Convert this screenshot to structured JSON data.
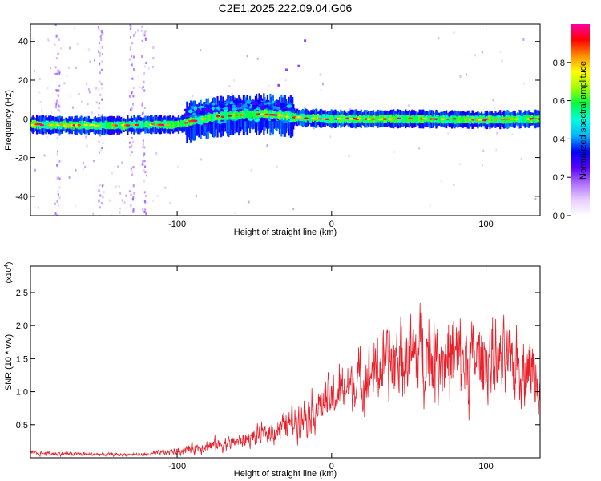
{
  "page_title": "C2E1.2025.222.09.04.G06",
  "chart_data": [
    {
      "type": "heatmap",
      "title": "C2E1.2025.222.09.04.G06",
      "xlabel": "Height of straight line (km)",
      "ylabel": "Frequency (Hz)",
      "xlim": [
        -195,
        135
      ],
      "ylim": [
        -50,
        49
      ],
      "x_ticks": [
        -100,
        0,
        100
      ],
      "y_ticks": [
        -40,
        -20,
        0,
        20,
        40
      ],
      "x_tick_labels": [
        "-100",
        "0",
        "100"
      ],
      "y_tick_labels": [
        "-40",
        "-20",
        "0",
        "20",
        "40"
      ],
      "colorbar": {
        "label": "Normalized spectral amplitude",
        "range": [
          0,
          1
        ],
        "ticks": [
          0.0,
          0.2,
          0.4,
          0.6,
          0.8
        ],
        "tick_labels": [
          "0.0",
          "0.2",
          "0.4",
          "0.6",
          "0.8"
        ],
        "colormap": [
          "#ffffff",
          "#e8ccff",
          "#b070ff",
          "#5a00ff",
          "#0000ff",
          "#00b4ff",
          "#00ffe0",
          "#00ff40",
          "#a0ff00",
          "#ffff00",
          "#ff9000",
          "#ff0000",
          "#ff00a0"
        ]
      },
      "ridge": {
        "description_free": true,
        "points": [
          [
            -195,
            -3
          ],
          [
            -150,
            -3.5
          ],
          [
            -120,
            -3
          ],
          [
            -100,
            -3
          ],
          [
            -90,
            -1
          ],
          [
            -75,
            1
          ],
          [
            -60,
            2
          ],
          [
            -45,
            2.5
          ],
          [
            -30,
            1.5
          ],
          [
            -20,
            0.5
          ],
          [
            0,
            0
          ],
          [
            50,
            0
          ],
          [
            100,
            -0.5
          ],
          [
            135,
            0
          ]
        ]
      }
    },
    {
      "type": "line",
      "xlabel": "Height of straight line (km)",
      "ylabel": "SNR (10 * v/v)",
      "y_multiplier_label": "(x10",
      "y_multiplier_exp": "4",
      "xlim": [
        -195,
        135
      ],
      "ylim": [
        0,
        2.9
      ],
      "x_ticks": [
        -100,
        0,
        100
      ],
      "y_ticks": [
        0.5,
        1.0,
        1.5,
        2.0,
        2.5
      ],
      "x_tick_labels": [
        "-100",
        "0",
        "100"
      ],
      "y_tick_labels": [
        "0.5",
        "1.0",
        "1.5",
        "2.0",
        "2.5"
      ],
      "line_color": "#e8202a",
      "envelope": {
        "x": [
          -195,
          -170,
          -140,
          -120,
          -100,
          -80,
          -60,
          -40,
          -25,
          -10,
          0,
          10,
          20,
          30,
          40,
          50,
          60,
          70,
          80,
          90,
          100,
          110,
          120,
          130,
          135
        ],
        "mean": [
          0.07,
          0.06,
          0.05,
          0.05,
          0.1,
          0.18,
          0.25,
          0.38,
          0.55,
          0.75,
          0.9,
          1.05,
          1.2,
          1.35,
          1.45,
          1.5,
          1.6,
          1.55,
          1.5,
          1.45,
          1.5,
          1.4,
          1.45,
          1.35,
          1.3
        ],
        "amplitude": [
          0.05,
          0.04,
          0.03,
          0.03,
          0.08,
          0.12,
          0.15,
          0.2,
          0.3,
          0.4,
          0.45,
          0.5,
          0.55,
          0.65,
          0.75,
          0.8,
          0.9,
          0.85,
          0.85,
          0.8,
          0.75,
          0.7,
          0.7,
          0.65,
          0.6
        ]
      }
    }
  ]
}
